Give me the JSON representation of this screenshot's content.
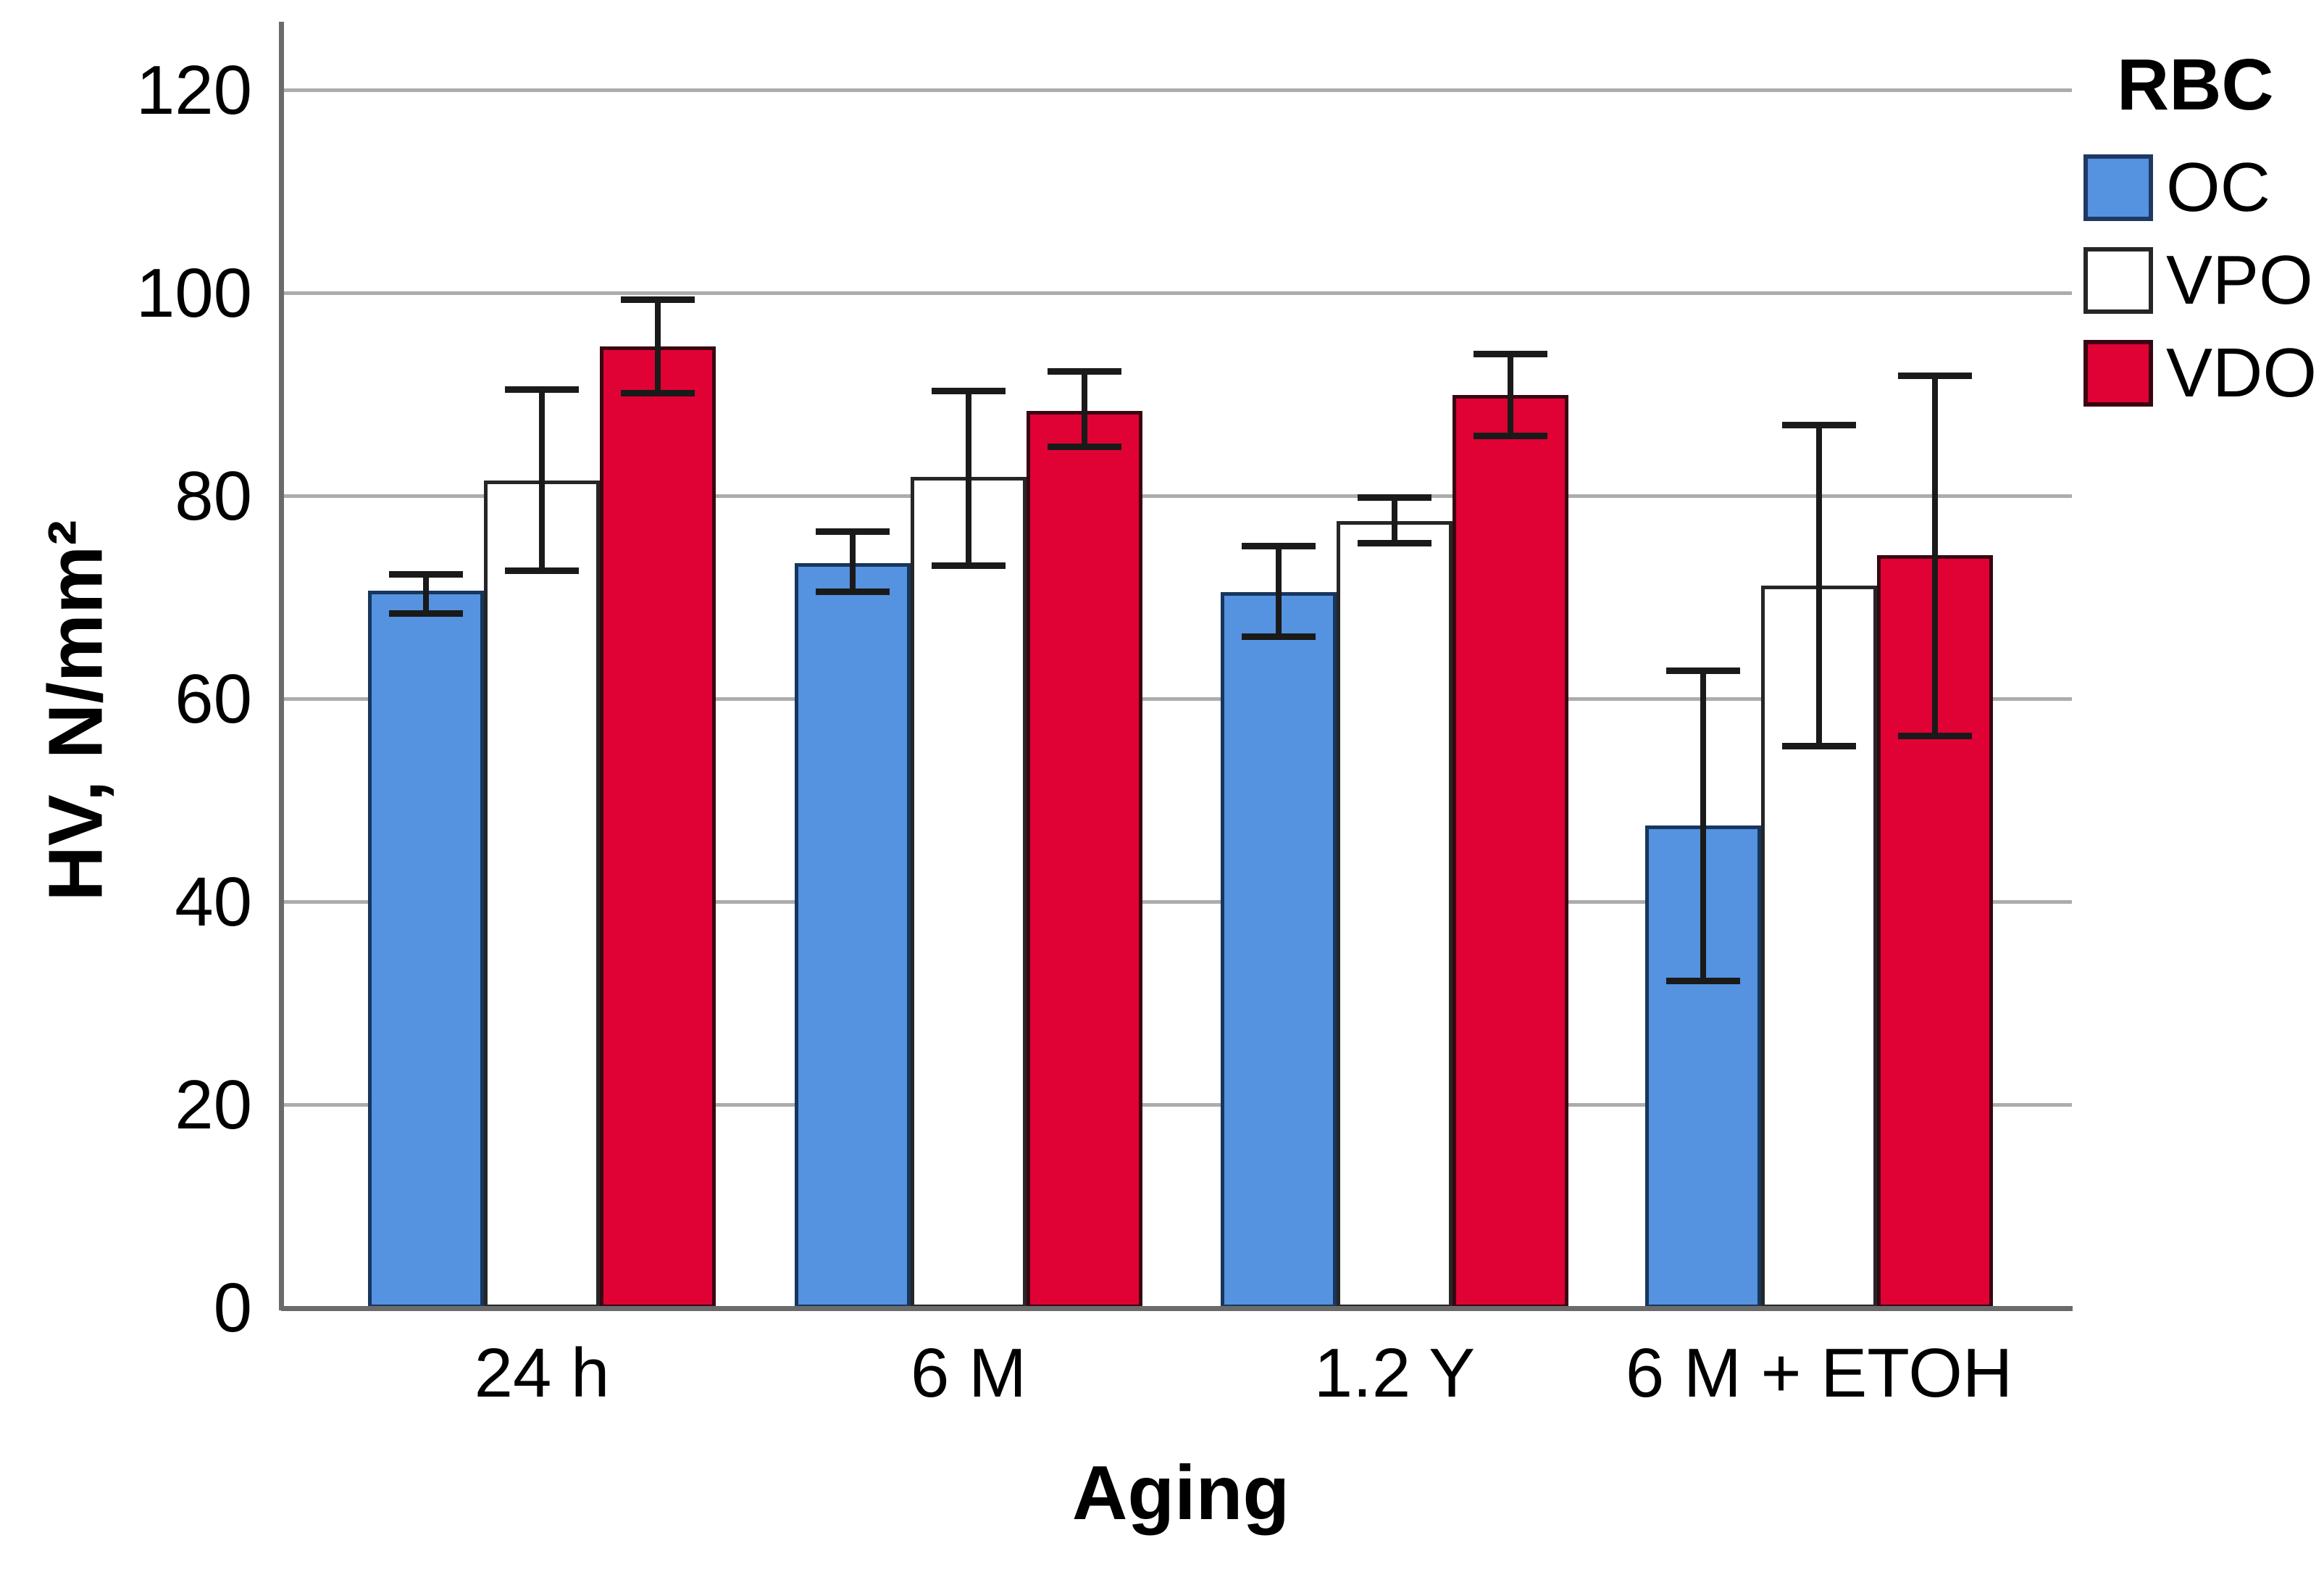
{
  "legend": {
    "title": "RBC",
    "items": [
      {
        "label": "OC",
        "color": "#5592E0",
        "border": "#1F3864"
      },
      {
        "label": "VPO",
        "color": "#FFFFFF",
        "border": "#262626"
      },
      {
        "label": "VDO",
        "color": "#E00234",
        "border": "#3A0512"
      }
    ]
  },
  "axes": {
    "y_title": "HV, N/mm²",
    "x_title": "Aging",
    "y_ticks": [
      0,
      20,
      40,
      60,
      80,
      100,
      120
    ]
  },
  "colors": {
    "gridline": "#ACACAC",
    "axis_line": "#6b6b6b",
    "error_bar": "#1a1a1a"
  },
  "chart_data": {
    "type": "bar",
    "title": "",
    "xlabel": "Aging",
    "ylabel": "HV, N/mm²",
    "ylim": [
      0,
      127
    ],
    "grid": true,
    "legend_position": "top-right",
    "legend_title": "RBC",
    "categories": [
      "24 h",
      "6 M",
      "1.2 Y",
      "6 M + ETOH"
    ],
    "series": [
      {
        "name": "OC",
        "color": "#5592E0",
        "border": "#17365D",
        "values": [
          70.7,
          73.4,
          70.6,
          47.6
        ],
        "error_low": [
          68.8,
          70.9,
          66.5,
          32.6
        ],
        "error_high": [
          72.0,
          76.2,
          74.8,
          62.5
        ]
      },
      {
        "name": "VPO",
        "color": "#FFFFFF",
        "border": "#262626",
        "values": [
          81.6,
          81.9,
          77.6,
          71.2
        ],
        "error_low": [
          73.0,
          73.5,
          75.7,
          55.7
        ],
        "error_high": [
          90.2,
          90.1,
          79.6,
          86.7
        ]
      },
      {
        "name": "VDO",
        "color": "#E00234",
        "border": "#3A0512",
        "values": [
          94.8,
          88.4,
          90.0,
          74.2
        ],
        "error_low": [
          90.5,
          85.2,
          86.3,
          56.7
        ],
        "error_high": [
          99.1,
          92.0,
          93.7,
          91.6
        ]
      }
    ]
  }
}
